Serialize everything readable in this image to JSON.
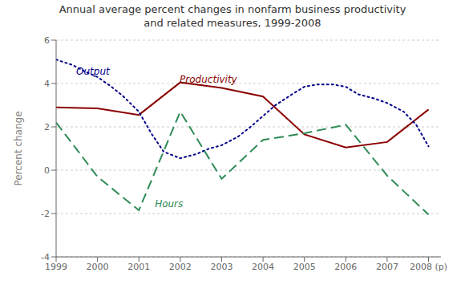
{
  "chart_data": {
    "type": "line",
    "title": "Annual average percent changes in nonfarm business productivity\nand related measures, 1999-2008",
    "ylabel": "Percent change",
    "xlim": [
      1999,
      2008.3
    ],
    "xticks": [
      1999,
      2000,
      2001,
      2002,
      2003,
      2004,
      2005,
      2006,
      2007,
      {
        "value": 2008,
        "label": "2008 (p)"
      }
    ],
    "ylim": [
      -4,
      6
    ],
    "yticks": [
      -4,
      -2,
      0,
      2,
      4,
      6
    ],
    "grid": "y",
    "series": [
      {
        "color": "#8B0000",
        "line_style": "solid",
        "x": [
          1999,
          2000,
          2001,
          2002,
          2003,
          2004,
          2005,
          2006,
          2007,
          2008
        ],
        "values": [
          2.9,
          2.85,
          2.55,
          4.05,
          3.8,
          3.4,
          1.65,
          1.05,
          1.3,
          2.8
        ]
      },
      {
        "color": "#00008B",
        "line_style": "dotted",
        "x": [
          1999,
          1999.4,
          1999.7,
          2000.0,
          2000.3,
          2000.6,
          2001.0,
          2001.3,
          2001.6,
          2002.0,
          2002.4,
          2002.7,
          2003.0,
          2003.4,
          2003.7,
          2004.0,
          2004.3,
          2004.7,
          2005.0,
          2005.3,
          2005.7,
          2006.0,
          2006.3,
          2006.7,
          2007.0,
          2007.4,
          2007.7,
          2008.0
        ],
        "values": [
          5.1,
          4.85,
          4.55,
          4.3,
          3.9,
          3.45,
          2.7,
          1.7,
          0.85,
          0.55,
          0.75,
          1.0,
          1.15,
          1.55,
          2.0,
          2.5,
          3.0,
          3.5,
          3.85,
          3.95,
          3.95,
          3.85,
          3.5,
          3.3,
          3.1,
          2.7,
          2.1,
          1.1
        ]
      },
      {
        "color": "#2E8B57",
        "line_style": "dashed",
        "x": [
          1999,
          2000,
          2001,
          2002,
          2003,
          2004,
          2005,
          2006,
          2007,
          2008
        ],
        "values": [
          2.2,
          -0.3,
          -1.85,
          2.7,
          -0.4,
          1.4,
          1.7,
          2.1,
          -0.25,
          -2.05
        ]
      }
    ],
    "annotations": [
      {
        "text": "Output",
        "x": 1999.35,
        "y": 4.55,
        "color": "#00008B"
      },
      {
        "text": "Productivity",
        "x": 2001.85,
        "y": 4.2,
        "color": "#8B0000"
      },
      {
        "text": "Hours",
        "x": 2001.25,
        "y": -1.55,
        "color": "#2E8B57"
      }
    ]
  }
}
